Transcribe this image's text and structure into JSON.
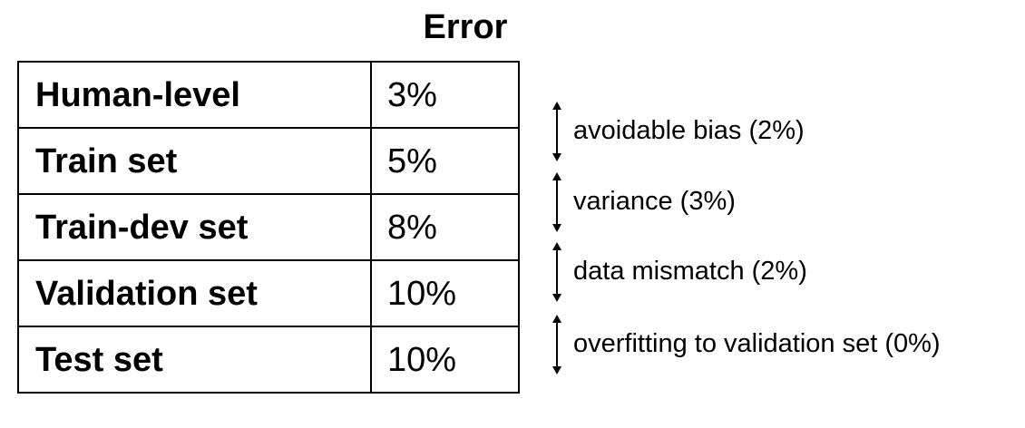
{
  "header": "Error",
  "rows": [
    {
      "label": "Human-level",
      "value": "3%"
    },
    {
      "label": "Train set",
      "value": "5%"
    },
    {
      "label": "Train-dev set",
      "value": "8%"
    },
    {
      "label": "Validation set",
      "value": "10%"
    },
    {
      "label": "Test set",
      "value": "10%"
    }
  ],
  "gaps": [
    {
      "label": "avoidable bias (2%)"
    },
    {
      "label": "variance (3%)"
    },
    {
      "label": "data mismatch (2%)"
    },
    {
      "label": "overfitting to validation set (0%)"
    }
  ],
  "colors": {
    "text": "#000000",
    "border": "#000000",
    "background": "#ffffff"
  }
}
